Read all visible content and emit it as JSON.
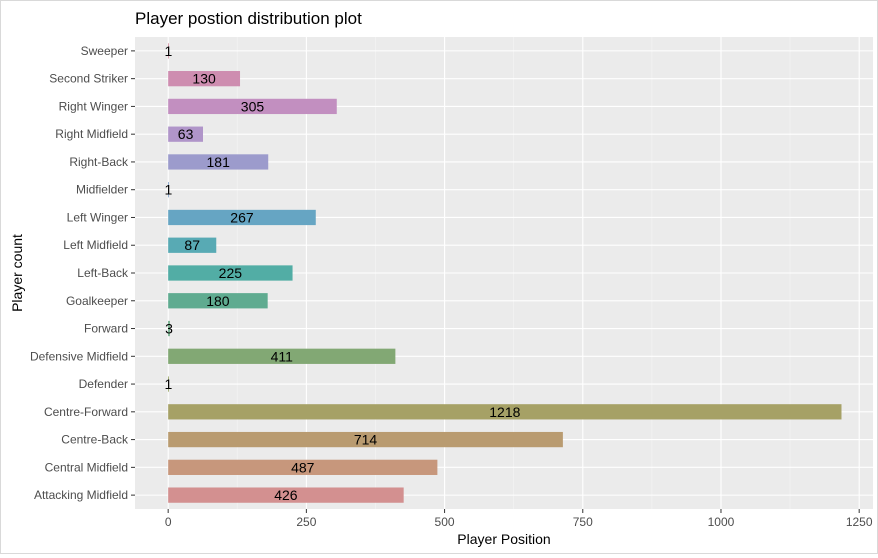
{
  "chart_data": {
    "type": "bar",
    "orientation": "horizontal",
    "title": "Player postion distribution plot",
    "xlabel": "Player Position",
    "ylabel": "Player count",
    "categories": [
      "Attacking Midfield",
      "Central Midfield",
      "Centre-Back",
      "Centre-Forward",
      "Defender",
      "Defensive Midfield",
      "Forward",
      "Goalkeeper",
      "Left-Back",
      "Left Midfield",
      "Left Winger",
      "Midfielder",
      "Right-Back",
      "Right Midfield",
      "Right Winger",
      "Second Striker",
      "Sweeper"
    ],
    "values": [
      426,
      487,
      714,
      1218,
      1,
      411,
      3,
      180,
      225,
      87,
      267,
      1,
      181,
      63,
      305,
      130,
      1
    ],
    "colors": [
      "#d39090",
      "#c7977c",
      "#b99b70",
      "#a6a166",
      "#94a35e",
      "#82a874",
      "#6aab84",
      "#5fab90",
      "#52ada5",
      "#58aab4",
      "#66a5c3",
      "#7c9dc8",
      "#9c9bcc",
      "#b095c9",
      "#c28fc0",
      "#ce8db0",
      "#d48ba0"
    ],
    "xlim": [
      -60,
      1275
    ],
    "xticks": [
      0,
      250,
      500,
      750,
      1000,
      1250
    ],
    "grid": true,
    "legend": "none"
  }
}
